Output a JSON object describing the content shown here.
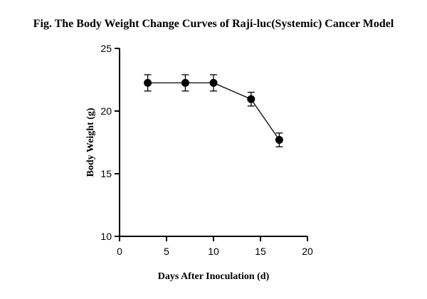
{
  "chart_data": {
    "type": "scatter",
    "title": "Fig. The Body Weight Change Curves of Raji-luc(Systemic) Cancer  Model",
    "xlabel": "Days After Inoculation (d)",
    "ylabel": "Body Weight (g)",
    "xlim": [
      0,
      20
    ],
    "ylim": [
      10,
      25
    ],
    "xticks": [
      "0",
      "5",
      "10",
      "15",
      "20"
    ],
    "yticks": [
      "10",
      "15",
      "20",
      "25"
    ],
    "grid": false,
    "connected": true,
    "error_bars": true,
    "series": [
      {
        "x": [
          3,
          7,
          10,
          14,
          17
        ],
        "y": [
          22.25,
          22.25,
          22.25,
          20.95,
          17.7
        ],
        "err": [
          0.65,
          0.65,
          0.65,
          0.55,
          0.55
        ]
      }
    ]
  }
}
